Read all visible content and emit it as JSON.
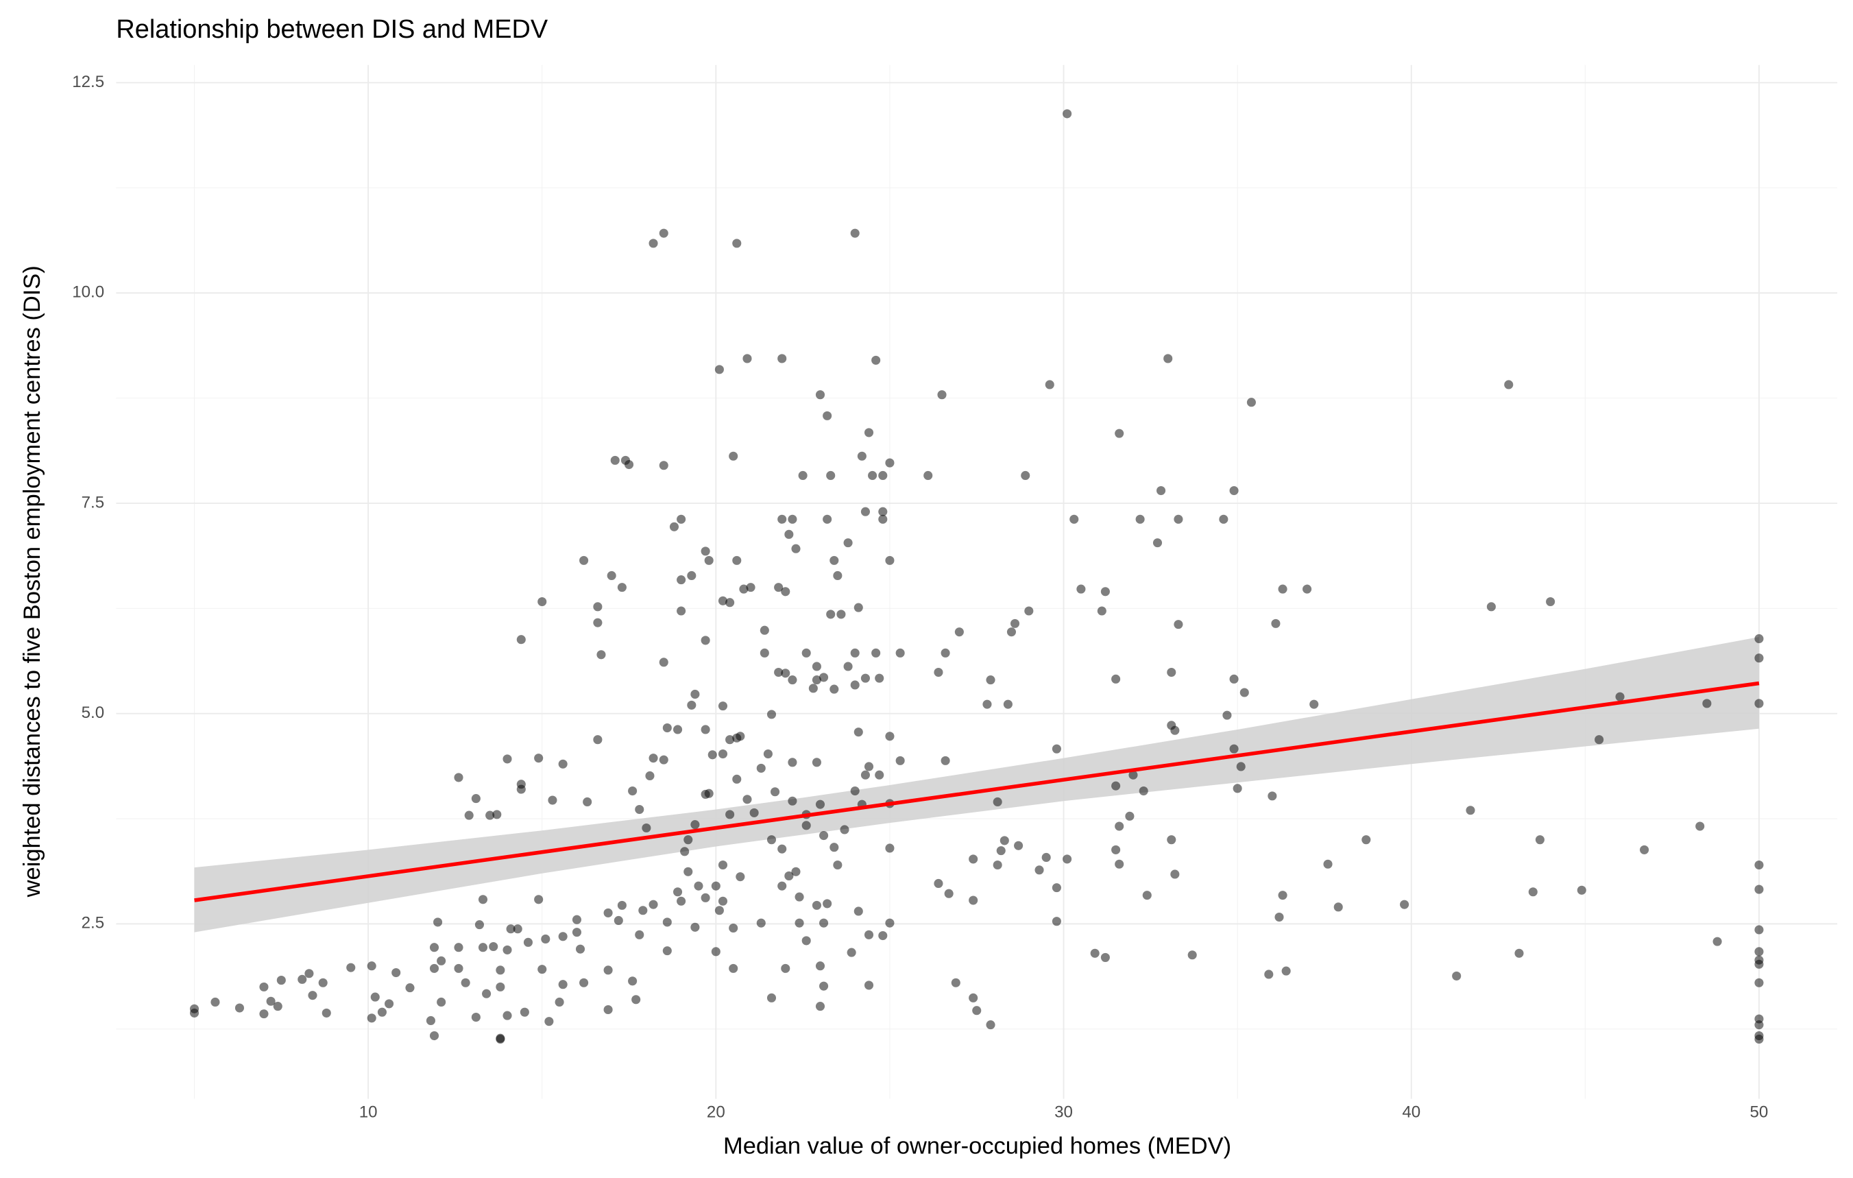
{
  "chart_data": {
    "type": "scatter",
    "title": "Relationship between DIS and MEDV",
    "x_label": "Median value of owner-occupied homes (MEDV)",
    "y_label": "weighted distances to five Boston employment centres (DIS)",
    "xlim": [
      2.75,
      52.25
    ],
    "ylim": [
      0.42,
      12.71
    ],
    "xticks": [
      10,
      20,
      30,
      40,
      50
    ],
    "yticks": [
      2.5,
      {
        "value": 5,
        "label": "5.0"
      },
      7.5,
      {
        "value": 10,
        "label": "10.0"
      },
      12.5
    ],
    "x_minor_grid": [
      5,
      15,
      25,
      35,
      45
    ],
    "y_minor_grid": [
      1.25,
      3.75,
      6.25,
      8.75,
      11.25
    ],
    "grid": true,
    "series": [
      {
        "color": "#000000",
        "opacity": 0.5,
        "x": [
          30.1,
          18.2,
          18.5,
          20.6,
          24.0,
          20.1,
          20.9,
          21.9,
          24.6,
          33.0,
          29.6,
          42.8,
          23.0,
          26.5,
          35.4,
          23.2,
          24.4,
          31.6,
          17.1,
          17.4,
          17.5,
          18.5,
          20.5,
          24.2,
          25.0,
          22.5,
          23.3,
          24.5,
          24.8,
          26.1,
          28.9,
          32.8,
          34.9,
          19.0,
          18.8,
          21.9,
          22.2,
          23.2,
          24.3,
          24.8,
          24.8,
          30.3,
          32.2,
          33.3,
          34.6,
          22.1,
          22.3,
          23.8,
          32.7,
          19.7,
          19.8,
          20.6,
          16.2,
          23.4,
          25.0,
          17.0,
          19.3,
          19.0,
          23.5,
          17.3,
          20.8,
          21.0,
          21.8,
          22.0,
          30.5,
          31.2,
          36.3,
          37.0,
          20.2,
          20.4,
          19.0,
          23.3,
          23.6,
          24.1,
          29.0,
          31.1,
          42.3,
          44.0,
          16.6,
          16.6,
          15.0,
          36.1,
          33.3,
          28.6,
          28.5,
          27.0,
          19.7,
          21.4,
          14.4,
          16.7,
          18.5,
          21.4,
          22.6,
          24.0,
          24.6,
          25.3,
          26.6,
          50.0,
          50.0,
          22.9,
          23.8,
          21.8,
          22.0,
          26.4,
          33.1,
          22.2,
          22.9,
          23.1,
          24.3,
          24.7,
          27.9,
          31.5,
          34.9,
          22.8,
          23.4,
          24.0,
          35.2,
          19.4,
          19.3,
          20.2,
          27.8,
          28.4,
          37.2,
          46.0,
          48.5,
          50.0,
          21.6,
          34.7,
          33.1,
          33.2,
          18.6,
          18.9,
          19.7,
          24.1,
          20.6,
          20.7,
          20.4,
          25.0,
          16.6,
          45.4,
          29.8,
          34.9,
          19.9,
          20.2,
          21.5,
          18.2,
          18.5,
          14.0,
          14.9,
          24.4,
          25.3,
          26.6,
          35.1,
          15.6,
          22.2,
          22.9,
          21.3,
          32.0,
          12.6,
          14.4,
          14.4,
          18.1,
          20.6,
          24.3,
          24.7,
          17.6,
          19.8,
          21.7,
          24.0,
          31.5,
          32.3,
          35.0,
          36.0,
          13.1,
          15.3,
          16.3,
          19.7,
          20.9,
          22.2,
          28.1,
          17.8,
          23.0,
          24.2,
          20.4,
          21.1,
          22.6,
          25.0,
          41.7,
          12.9,
          13.5,
          13.7,
          31.9,
          19.4,
          22.6,
          23.7,
          31.6,
          48.3,
          18.0,
          19.2,
          21.6,
          23.1,
          28.3,
          28.7,
          33.1,
          38.7,
          43.7,
          19.1,
          21.9,
          23.4,
          25.0,
          28.2,
          31.5,
          46.7,
          27.4,
          29.5,
          30.1,
          28.1,
          31.6,
          37.6,
          50.0,
          20.2,
          22.3,
          23.5,
          19.2,
          29.3,
          33.2,
          20.7,
          22.1,
          19.5,
          20.0,
          21.9,
          26.4,
          29.8,
          18.9,
          19.7,
          22.4,
          26.7,
          32.4,
          36.3,
          43.5,
          44.9,
          50.0,
          19.0,
          20.2,
          23.2,
          27.4,
          37.9,
          39.8,
          17.3,
          18.2,
          16.9,
          17.9,
          20.1,
          22.9,
          24.1,
          36.2,
          13.3,
          14.9,
          12.0,
          16.0,
          17.2,
          18.6,
          21.3,
          22.4,
          23.1,
          25.0,
          29.8,
          50.0,
          13.2,
          14.1,
          14.3,
          15.1,
          15.6,
          16.0,
          17.8,
          19.4,
          20.5,
          24.4,
          24.8,
          12.6,
          12.1,
          11.9,
          13.3,
          13.6,
          14.0,
          14.6,
          16.1,
          18.6,
          20.0,
          22.6,
          23.9,
          30.9,
          31.2,
          33.7,
          43.1,
          48.8,
          50.0,
          50.0,
          50.0,
          10.1,
          9.5,
          10.8,
          11.9,
          12.6,
          13.8,
          15.0,
          16.9,
          20.5,
          22.0,
          23.0,
          35.9,
          36.4,
          41.3,
          50.0,
          8.3,
          8.1,
          7.5,
          7.0,
          8.7,
          11.2,
          12.8,
          13.8,
          15.6,
          16.2,
          17.6,
          23.1,
          24.4,
          26.9,
          7.2,
          7.4,
          8.4,
          10.2,
          10.6,
          12.1,
          13.4,
          15.5,
          17.7,
          21.6,
          23.0,
          27.4,
          5.0,
          5.0,
          5.6,
          6.3,
          7.0,
          8.8,
          10.1,
          10.4,
          11.8,
          13.1,
          14.0,
          14.5,
          15.2,
          16.9,
          27.5,
          27.9,
          11.9,
          13.8,
          13.8,
          50.0,
          50.0,
          50.0,
          50.0
        ],
        "values": [
          12.13,
          10.59,
          10.71,
          10.59,
          10.71,
          9.09,
          9.22,
          9.22,
          9.2,
          9.22,
          8.91,
          8.91,
          8.79,
          8.79,
          8.7,
          8.54,
          8.34,
          8.33,
          8.01,
          8.01,
          7.96,
          7.95,
          8.06,
          8.06,
          7.98,
          7.83,
          7.83,
          7.83,
          7.83,
          7.83,
          7.83,
          7.65,
          7.65,
          7.31,
          7.22,
          7.31,
          7.31,
          7.31,
          7.4,
          7.4,
          7.31,
          7.31,
          7.31,
          7.31,
          7.31,
          7.13,
          6.96,
          7.03,
          7.03,
          6.93,
          6.82,
          6.82,
          6.82,
          6.82,
          6.82,
          6.64,
          6.64,
          6.59,
          6.64,
          6.5,
          6.48,
          6.5,
          6.5,
          6.45,
          6.48,
          6.45,
          6.48,
          6.48,
          6.34,
          6.32,
          6.22,
          6.18,
          6.18,
          6.26,
          6.22,
          6.22,
          6.27,
          6.33,
          6.27,
          6.08,
          6.33,
          6.07,
          6.06,
          6.07,
          5.97,
          5.97,
          5.87,
          5.99,
          5.88,
          5.7,
          5.61,
          5.72,
          5.72,
          5.72,
          5.72,
          5.72,
          5.72,
          5.89,
          5.66,
          5.56,
          5.56,
          5.49,
          5.48,
          5.49,
          5.49,
          5.4,
          5.4,
          5.43,
          5.42,
          5.42,
          5.4,
          5.41,
          5.41,
          5.3,
          5.29,
          5.34,
          5.25,
          5.23,
          5.1,
          5.09,
          5.11,
          5.11,
          5.11,
          5.2,
          5.12,
          5.12,
          4.99,
          4.98,
          4.86,
          4.8,
          4.83,
          4.81,
          4.81,
          4.78,
          4.71,
          4.73,
          4.69,
          4.73,
          4.69,
          4.69,
          4.58,
          4.58,
          4.51,
          4.52,
          4.52,
          4.47,
          4.45,
          4.46,
          4.47,
          4.37,
          4.44,
          4.44,
          4.37,
          4.4,
          4.42,
          4.42,
          4.35,
          4.27,
          4.24,
          4.16,
          4.1,
          4.26,
          4.22,
          4.27,
          4.27,
          4.08,
          4.05,
          4.07,
          4.08,
          4.14,
          4.08,
          4.11,
          4.02,
          3.99,
          3.97,
          3.95,
          4.04,
          3.98,
          3.96,
          3.95,
          3.86,
          3.92,
          3.92,
          3.8,
          3.82,
          3.8,
          3.93,
          3.85,
          3.79,
          3.79,
          3.8,
          3.78,
          3.68,
          3.67,
          3.62,
          3.66,
          3.66,
          3.64,
          3.5,
          3.5,
          3.55,
          3.49,
          3.43,
          3.5,
          3.5,
          3.5,
          3.36,
          3.39,
          3.41,
          3.4,
          3.37,
          3.38,
          3.38,
          3.27,
          3.29,
          3.27,
          3.2,
          3.21,
          3.21,
          3.2,
          3.2,
          3.12,
          3.2,
          3.12,
          3.14,
          3.09,
          3.06,
          3.07,
          2.95,
          2.95,
          2.95,
          2.98,
          2.93,
          2.88,
          2.81,
          2.82,
          2.86,
          2.84,
          2.84,
          2.88,
          2.9,
          2.91,
          2.77,
          2.77,
          2.74,
          2.78,
          2.7,
          2.73,
          2.72,
          2.73,
          2.63,
          2.66,
          2.66,
          2.72,
          2.65,
          2.58,
          2.79,
          2.79,
          2.52,
          2.55,
          2.54,
          2.52,
          2.51,
          2.51,
          2.51,
          2.51,
          2.53,
          2.43,
          2.49,
          2.44,
          2.44,
          2.32,
          2.35,
          2.4,
          2.37,
          2.46,
          2.45,
          2.37,
          2.36,
          2.22,
          2.06,
          2.22,
          2.22,
          2.23,
          2.19,
          2.28,
          2.2,
          2.18,
          2.17,
          2.3,
          2.16,
          2.15,
          2.1,
          2.13,
          2.15,
          2.29,
          2.17,
          2.07,
          2.02,
          2.0,
          1.98,
          1.92,
          1.97,
          1.97,
          1.95,
          1.96,
          1.95,
          1.97,
          1.97,
          2.0,
          1.9,
          1.94,
          1.88,
          1.8,
          1.91,
          1.84,
          1.83,
          1.75,
          1.8,
          1.74,
          1.8,
          1.75,
          1.78,
          1.8,
          1.82,
          1.76,
          1.77,
          1.8,
          1.58,
          1.52,
          1.65,
          1.63,
          1.55,
          1.57,
          1.67,
          1.57,
          1.6,
          1.62,
          1.52,
          1.62,
          1.49,
          1.44,
          1.57,
          1.5,
          1.43,
          1.44,
          1.38,
          1.45,
          1.35,
          1.39,
          1.41,
          1.45,
          1.34,
          1.48,
          1.47,
          1.3,
          1.17,
          1.14,
          1.13,
          1.37,
          1.3,
          1.17,
          1.13
        ]
      }
    ],
    "fit": {
      "color": "#ff0000",
      "x": [
        5,
        50
      ],
      "values": [
        2.78,
        5.36
      ]
    },
    "band": {
      "color": "#d3d3d3",
      "x": [
        5,
        10,
        15,
        20,
        22.5,
        25,
        30,
        35,
        40,
        45,
        50
      ],
      "lower": [
        2.4,
        2.75,
        3.1,
        3.42,
        3.56,
        3.7,
        3.96,
        4.18,
        4.4,
        4.61,
        4.82
      ],
      "upper": [
        3.17,
        3.38,
        3.61,
        3.86,
        4.0,
        4.15,
        4.47,
        4.81,
        5.17,
        5.53,
        5.91
      ]
    }
  }
}
